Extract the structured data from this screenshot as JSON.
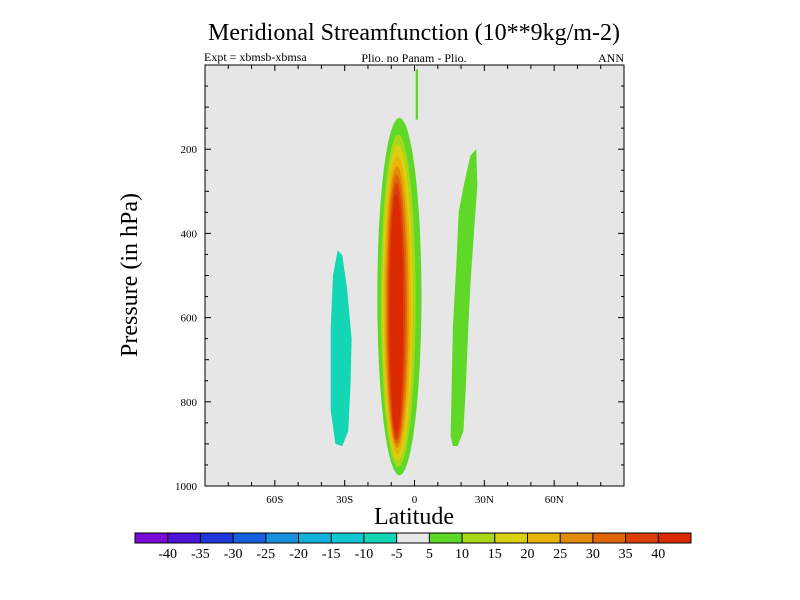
{
  "chart_data": {
    "type": "filled-contour",
    "title": "Meridional Streamfunction (10**9kg/m-2)",
    "subtitle_left": "Expt = xbmsb-xbmsa",
    "subtitle_center": "Plio. no Panam - Plio.",
    "subtitle_right": "ANN",
    "xlabel": "Latitude",
    "ylabel": "Pressure (in hPa)",
    "xlim": [
      -90,
      90
    ],
    "ylim": [
      1000,
      0
    ],
    "x_ticks": [
      {
        "value": -60,
        "label": "60S"
      },
      {
        "value": -30,
        "label": "30S"
      },
      {
        "value": 0,
        "label": "0"
      },
      {
        "value": 30,
        "label": "30N"
      },
      {
        "value": 60,
        "label": "60N"
      }
    ],
    "y_ticks": [
      {
        "value": 200,
        "label": "200"
      },
      {
        "value": 400,
        "label": "400"
      },
      {
        "value": 600,
        "label": "600"
      },
      {
        "value": 800,
        "label": "800"
      },
      {
        "value": 1000,
        "label": "1000"
      }
    ],
    "plot_background": "#e6e6e6",
    "colorbar": {
      "levels": [
        "-40",
        "-35",
        "-30",
        "-25",
        "-20",
        "-15",
        "-10",
        "-5",
        "5",
        "10",
        "15",
        "20",
        "25",
        "30",
        "35",
        "40"
      ],
      "colors": [
        "#7a0ad8",
        "#4b14d6",
        "#1e37d8",
        "#1660e0",
        "#1890e0",
        "#12b2dc",
        "#10c8d0",
        "#12d6b4",
        "#e8e8e8",
        "#60d828",
        "#a8d818",
        "#d8d010",
        "#e8b408",
        "#e48c08",
        "#e06408",
        "#dc4008",
        "#dc2a00"
      ]
    },
    "features": [
      {
        "name": "negative cell 30S",
        "value_range": "-10 to -5",
        "lat_range": [
          -36,
          -27
        ],
        "pressure_range": [
          435,
          905
        ]
      },
      {
        "name": "positive main cell equator",
        "value_range": "5 to >40",
        "lat_range": [
          -16,
          7
        ],
        "pressure_range": [
          130,
          985
        ]
      },
      {
        "name": "positive cell 20N",
        "value_range": "5 to 10",
        "lat_range": [
          16,
          27
        ],
        "pressure_range": [
          200,
          905
        ]
      }
    ]
  }
}
